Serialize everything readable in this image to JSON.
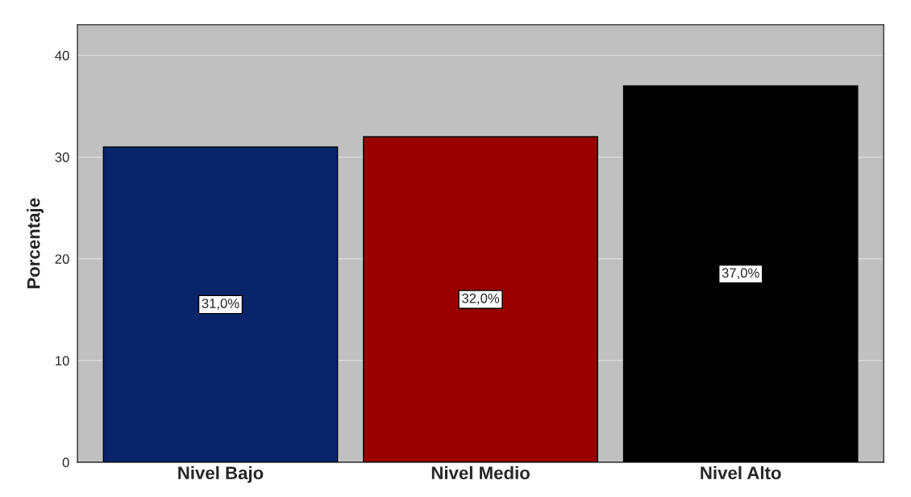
{
  "chart_data": {
    "type": "bar",
    "ylabel": "Porcentaje",
    "categories": [
      "Nivel Bajo",
      "Nivel Medio",
      "Nivel Alto"
    ],
    "values": [
      31,
      32,
      37
    ],
    "colors": [
      "#0a246a",
      "#990000",
      "#000000"
    ],
    "value_labels": [
      "31,0%",
      "32,0%",
      "37,0%"
    ],
    "ylim": [
      0,
      43
    ],
    "yticks": [
      0,
      10,
      20,
      30,
      40
    ],
    "grid": "y"
  }
}
